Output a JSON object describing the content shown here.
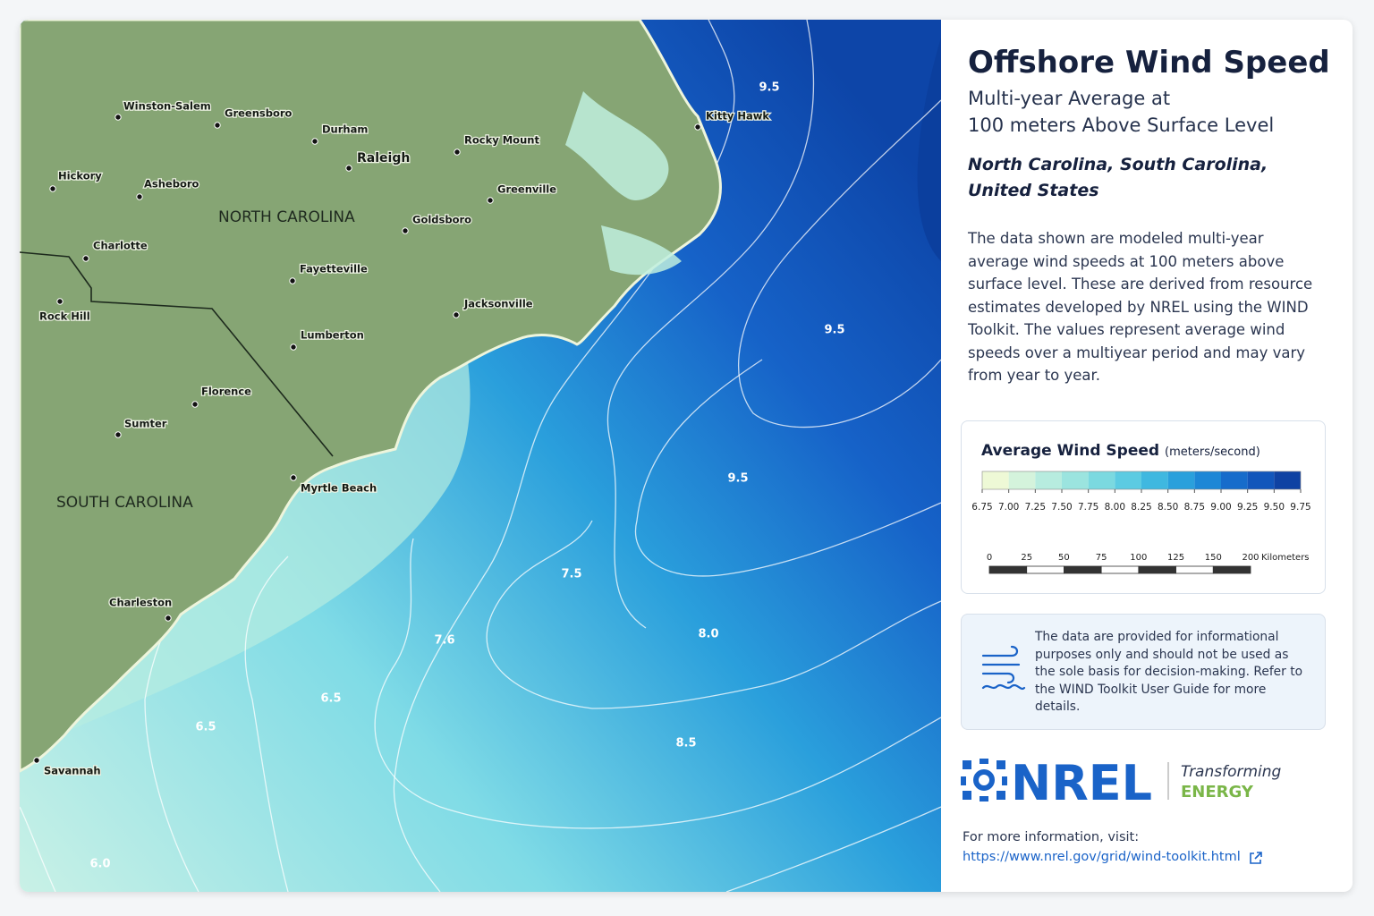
{
  "header": {
    "title": "Offshore Wind Speed",
    "subtitle_lines": [
      "Multi-year Average at",
      "100 meters Above Surface Level"
    ],
    "region_lines": [
      "North Carolina, South Carolina,",
      "United States"
    ]
  },
  "description": "The data shown are modeled multi-year average wind speeds at 100 meters above surface level. These are derived from resource estimates developed by NREL using the WIND Toolkit. The values represent average wind speeds over a multiyear period and may vary from year to year.",
  "legend": {
    "title": "Average Wind Speed",
    "unit": "(meters/second)",
    "colors": [
      "#eef9d6",
      "#d4f3dc",
      "#b7ecdf",
      "#9be4df",
      "#7bd9e0",
      "#5ccbe2",
      "#3fb8e0",
      "#2aa0dc",
      "#1d87d6",
      "#166ccb",
      "#1256bb",
      "#0f42a3"
    ],
    "labels": [
      "6.75",
      "7.00",
      "7.25",
      "7.50",
      "7.75",
      "8.00",
      "8.25",
      "8.50",
      "8.75",
      "9.00",
      "9.25",
      "9.50",
      "9.75"
    ],
    "scale_labels": [
      "0",
      "25",
      "50",
      "75",
      "100",
      "125",
      "150",
      "200"
    ],
    "scale_unit": "Kilometers"
  },
  "note": "The data are provided for informational purposes only and should not be used as the sole basis for decision-making. Refer to the WIND Toolkit User Guide for more details.",
  "logo": {
    "name": "NREL",
    "tagline_1": "Transforming",
    "tagline_2": "ENERGY"
  },
  "footer": {
    "text": "For more information, visit:",
    "link": "https://www.nrel.gov/grid/wind-toolkit.html"
  },
  "map": {
    "states": [
      "NORTH CAROLINA",
      "SOUTH CAROLINA"
    ],
    "cities": [
      "Winston-Salem",
      "Greensboro",
      "Durham",
      "Raleigh",
      "Rocky Mount",
      "Kitty Hawk",
      "Hickory",
      "Asheboro",
      "Greenville",
      "Goldsboro",
      "Charlotte",
      "Fayetteville",
      "Jacksonville",
      "Rock Hill",
      "Lumberton",
      "Florence",
      "Sumter",
      "Myrtle Beach",
      "Charleston",
      "Savannah"
    ],
    "contour_labels": [
      "9.5",
      "9.5",
      "9.5",
      "7.5",
      "7.6",
      "8.0",
      "8.5",
      "6.5",
      "6.5",
      "6.0"
    ]
  }
}
